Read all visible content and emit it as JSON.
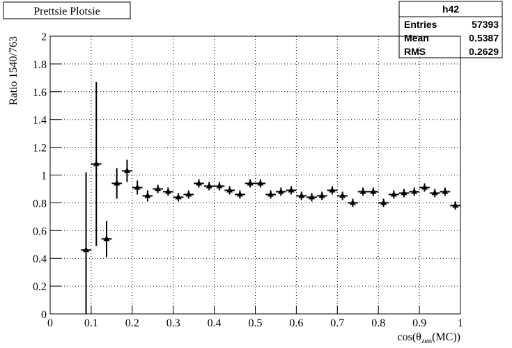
{
  "chart_data": {
    "type": "errorbar",
    "title": "Prettsie Plotsie",
    "y_label": "Ratio 1540/763",
    "x_label": [
      "cos(θ",
      "zen",
      "(MC))"
    ],
    "x": [
      0.0875,
      0.1125,
      0.1375,
      0.1625,
      0.1875,
      0.2125,
      0.2375,
      0.2625,
      0.2875,
      0.3125,
      0.3375,
      0.3625,
      0.3875,
      0.4125,
      0.4375,
      0.4625,
      0.4875,
      0.5125,
      0.5375,
      0.5625,
      0.5875,
      0.6125,
      0.6375,
      0.6625,
      0.6875,
      0.7125,
      0.7375,
      0.7625,
      0.7875,
      0.8125,
      0.8375,
      0.8625,
      0.8875,
      0.9125,
      0.9375,
      0.9625,
      0.9875
    ],
    "values": [
      0.46,
      1.08,
      0.54,
      0.94,
      1.03,
      0.91,
      0.85,
      0.9,
      0.88,
      0.84,
      0.86,
      0.94,
      0.92,
      0.92,
      0.89,
      0.86,
      0.94,
      0.94,
      0.86,
      0.88,
      0.89,
      0.85,
      0.84,
      0.85,
      0.89,
      0.85,
      0.8,
      0.88,
      0.88,
      0.8,
      0.86,
      0.87,
      0.88,
      0.91,
      0.87,
      0.88,
      0.78
    ],
    "errors": [
      0.56,
      0.59,
      0.13,
      0.11,
      0.08,
      0.05,
      0.04,
      0.03,
      0.03,
      0.03,
      0.03,
      0.03,
      0.03,
      0.03,
      0.03,
      0.03,
      0.03,
      0.03,
      0.03,
      0.03,
      0.03,
      0.03,
      0.03,
      0.03,
      0.03,
      0.03,
      0.03,
      0.03,
      0.03,
      0.03,
      0.03,
      0.03,
      0.03,
      0.03,
      0.03,
      0.03,
      0.03
    ],
    "x_error": 0.0125,
    "color": "#000000",
    "xlim": [
      0,
      1
    ],
    "ylim": [
      0,
      2
    ],
    "xticks": [
      0,
      0.1,
      0.2,
      0.3,
      0.4,
      0.5,
      0.6,
      0.7,
      0.8,
      0.9,
      1
    ],
    "yticks": [
      0,
      0.2,
      0.4,
      0.6,
      0.8,
      1,
      1.2,
      1.4,
      1.6,
      1.8,
      2
    ],
    "grid": true,
    "stats": {
      "title": "h42",
      "rows": [
        [
          "Entries",
          57393
        ],
        [
          "Mean",
          0.5387
        ],
        [
          "RMS",
          0.2629
        ]
      ]
    }
  }
}
